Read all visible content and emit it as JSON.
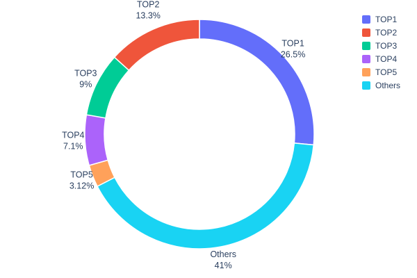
{
  "chart": {
    "background": "#ffffff",
    "text_color": "#2a3f5f"
  },
  "chart_data": {
    "type": "pie",
    "title": "",
    "hole": 0.83,
    "labels": [
      "TOP1",
      "TOP2",
      "TOP3",
      "TOP4",
      "TOP5",
      "Others"
    ],
    "values": [
      26.5,
      13.3,
      9,
      7.1,
      3.12,
      41
    ],
    "value_labels": [
      "26.5%",
      "13.3%",
      "9%",
      "7.1%",
      "3.12%",
      "41%"
    ],
    "colors": [
      "#636EFA",
      "#EF553B",
      "#00CC96",
      "#AB63FA",
      "#FFA15A",
      "#19D3F3"
    ],
    "rotation_order_clockwise_from_top": [
      "TOP1",
      "Others",
      "TOP5",
      "TOP4",
      "TOP3",
      "TOP2"
    ],
    "labels_position": "outside",
    "legend": {
      "position": "right",
      "entries": [
        "TOP1",
        "TOP2",
        "TOP3",
        "TOP4",
        "TOP5",
        "Others"
      ]
    }
  }
}
